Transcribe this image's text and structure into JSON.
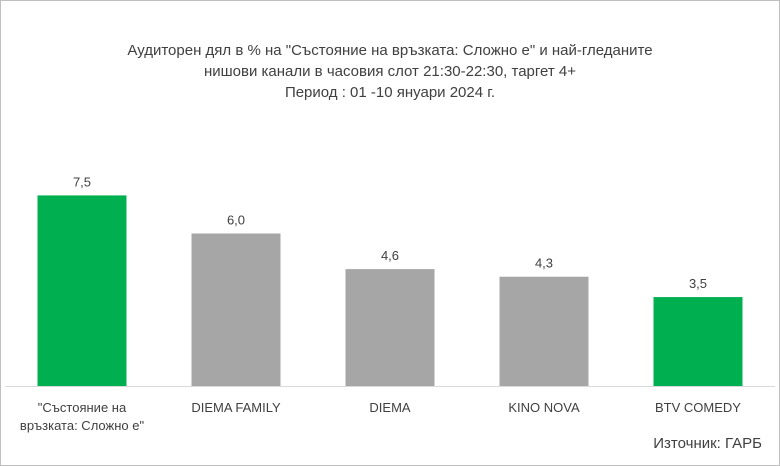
{
  "chart_data": {
    "type": "bar",
    "title_lines": [
      "Аудиторен дял в % на \"Състояние на връзката: Сложно е\" и най-гледаните",
      "нишови канали в часовия слот 21:30-22:30, таргет 4+",
      "Период : 01 -10 януари 2024 г."
    ],
    "categories": [
      [
        "\"Състояние на",
        "връзката: Сложно е\""
      ],
      [
        "DIEMA FAMILY"
      ],
      [
        "DIEMA"
      ],
      [
        "KINO NOVA"
      ],
      [
        "BTV COMEDY"
      ]
    ],
    "values": [
      7.5,
      6.0,
      4.6,
      4.3,
      3.5
    ],
    "value_labels": [
      "7,5",
      "6,0",
      "4,6",
      "4,3",
      "3,5"
    ],
    "bar_colors": [
      "#00b050",
      "#a6a6a6",
      "#a6a6a6",
      "#a6a6a6",
      "#00b050"
    ],
    "ylim": [
      0,
      8.5
    ],
    "grid": false,
    "source": "Източник: ГАРБ",
    "colors": {
      "axis": "#d9d9d9",
      "text": "#404040"
    }
  }
}
